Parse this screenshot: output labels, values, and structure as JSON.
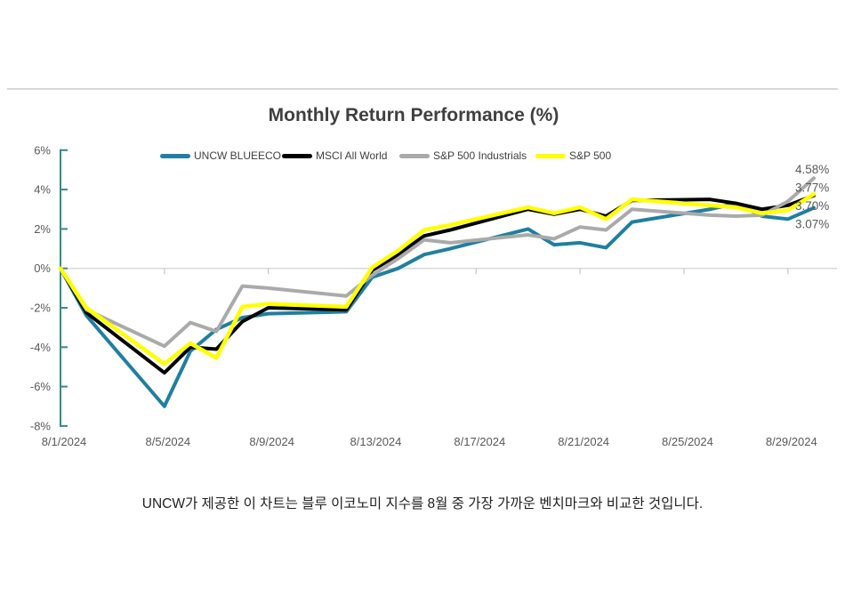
{
  "chart": {
    "title": "Monthly Return Performance (%)",
    "legend": [
      {
        "label": "UNCW BLUEECO",
        "color": "#1F7FA0"
      },
      {
        "label": "MSCI All World",
        "color": "#000000"
      },
      {
        "label": "S&P 500 Industrials",
        "color": "#AAAAAA"
      },
      {
        "label": "S&P 500",
        "color": "#FFFF00"
      }
    ],
    "axis_color": "#35898C",
    "gridline_color": "#D9D9D9",
    "tick_label_color": "#595959"
  },
  "chart_data": {
    "type": "line",
    "title": "Monthly Return Performance (%)",
    "x": [
      "8/1/2024",
      "8/2/2024",
      "8/5/2024",
      "8/6/2024",
      "8/7/2024",
      "8/8/2024",
      "8/9/2024",
      "8/12/2024",
      "8/13/2024",
      "8/14/2024",
      "8/15/2024",
      "8/16/2024",
      "8/19/2024",
      "8/20/2024",
      "8/21/2024",
      "8/22/2024",
      "8/23/2024",
      "8/26/2024",
      "8/27/2024",
      "8/28/2024",
      "8/29/2024",
      "8/30/2024"
    ],
    "day_of_month": [
      1,
      2,
      5,
      6,
      7,
      8,
      9,
      12,
      13,
      14,
      15,
      16,
      19,
      20,
      21,
      22,
      23,
      26,
      27,
      28,
      29,
      30
    ],
    "series": [
      {
        "name": "UNCW BLUEECO",
        "color": "#1F7FA0",
        "end_label": "3.07%",
        "values": [
          0,
          -2.4,
          -7.0,
          -4.2,
          -3.1,
          -2.5,
          -2.3,
          -2.2,
          -0.45,
          0.0,
          0.7,
          1.0,
          2.0,
          1.2,
          1.3,
          1.05,
          2.35,
          3.0,
          3.3,
          2.65,
          2.5,
          3.07
        ]
      },
      {
        "name": "MSCI All World",
        "color": "#000000",
        "end_label": "3.70%",
        "values": [
          0,
          -2.25,
          -5.3,
          -4.0,
          -4.1,
          -2.7,
          -2.0,
          -2.1,
          -0.1,
          0.7,
          1.65,
          1.95,
          3.0,
          2.75,
          3.0,
          2.65,
          3.45,
          3.5,
          3.3,
          3.0,
          3.2,
          3.7
        ]
      },
      {
        "name": "S&P 500 Industrials",
        "color": "#AAAAAA",
        "end_label": "4.58%",
        "values": [
          0,
          -2.1,
          -3.95,
          -2.75,
          -3.2,
          -0.9,
          -1.0,
          -1.4,
          -0.35,
          0.5,
          1.45,
          1.3,
          1.7,
          1.5,
          2.1,
          1.95,
          3.0,
          2.7,
          2.65,
          2.7,
          3.4,
          4.58
        ]
      },
      {
        "name": "S&P 500",
        "color": "#FFFF00",
        "end_label": "3.77%",
        "values": [
          0,
          -2.0,
          -4.85,
          -3.8,
          -4.55,
          -1.95,
          -1.8,
          -1.95,
          0.05,
          0.9,
          1.95,
          2.2,
          3.1,
          2.8,
          3.1,
          2.5,
          3.5,
          3.2,
          3.1,
          2.8,
          2.95,
          3.77
        ]
      }
    ],
    "ylim": [
      -8,
      6
    ],
    "y_tick_values": [
      6,
      4,
      2,
      0,
      -2,
      -4,
      -6,
      -8
    ],
    "y_tick_labels": [
      "6%",
      "4%",
      "2%",
      "0%",
      "-2%",
      "-4%",
      "-6%",
      "-8%"
    ],
    "x_tick_days": [
      1,
      5,
      9,
      13,
      17,
      21,
      25,
      29
    ],
    "x_tick_labels": [
      "8/1/2024",
      "8/5/2024",
      "8/9/2024",
      "8/13/2024",
      "8/17/2024",
      "8/21/2024",
      "8/25/2024",
      "8/29/2024"
    ],
    "end_labels": [
      "4.58%",
      "3.77%",
      "3.70%",
      "3.07%"
    ],
    "grid": "only zero line",
    "legend_position": "top"
  },
  "caption": {
    "text": "UNCW가 제공한 이 차트는 블루 이코노미 지수를 8월 중 가장 가까운 벤치마크와 비교한 것입니다."
  }
}
